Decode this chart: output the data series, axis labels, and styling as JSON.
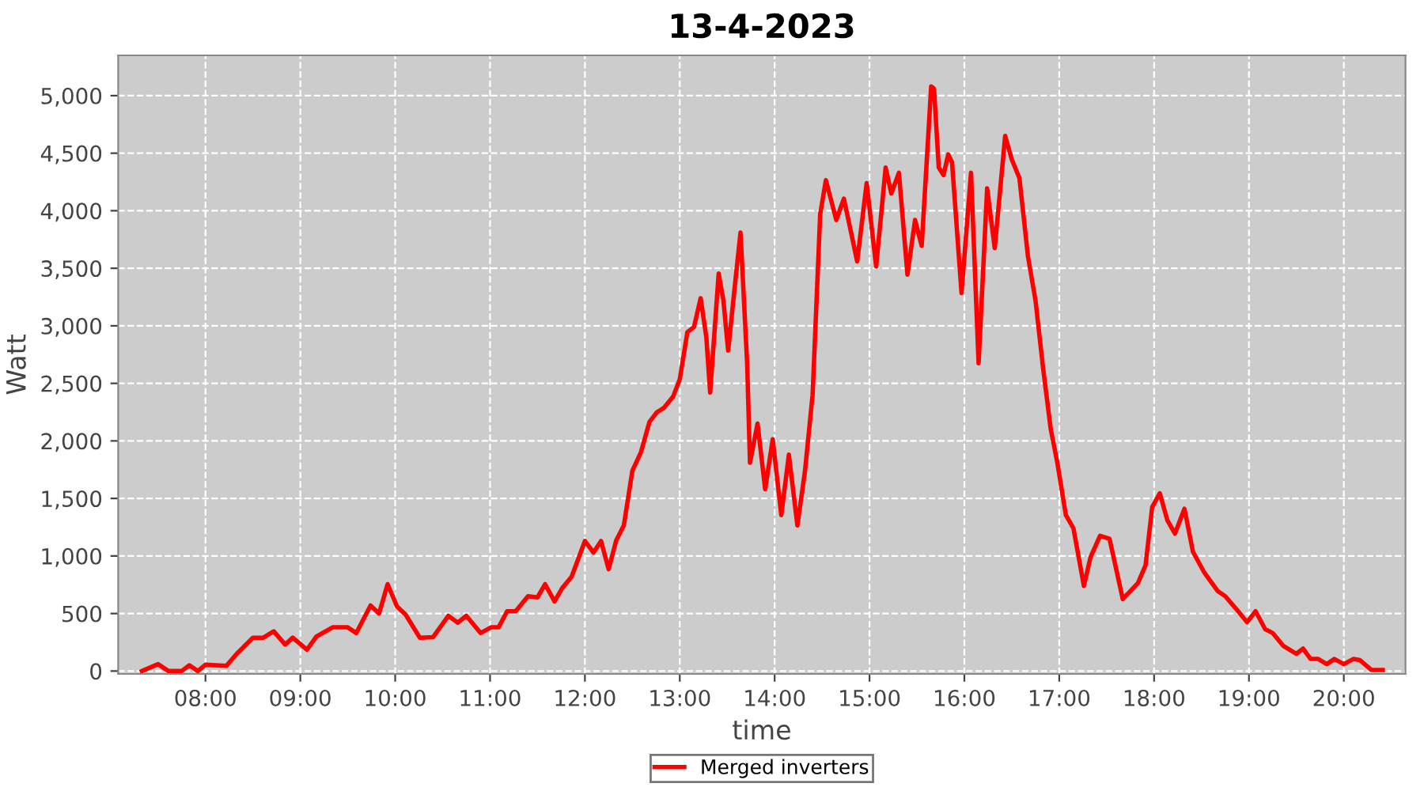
{
  "chart_data": {
    "type": "line",
    "title": "13-4-2023",
    "xlabel": "time",
    "ylabel": "Watt",
    "legend": "bottom",
    "grid": true,
    "line_style": "solid",
    "marker": "none",
    "xlim": [
      7.08,
      20.65
    ],
    "ylim": [
      -25,
      5350
    ],
    "xticks": [
      {
        "value": 8,
        "label": "08:00"
      },
      {
        "value": 9,
        "label": "09:00"
      },
      {
        "value": 10,
        "label": "10:00"
      },
      {
        "value": 11,
        "label": "11:00"
      },
      {
        "value": 12,
        "label": "12:00"
      },
      {
        "value": 13,
        "label": "13:00"
      },
      {
        "value": 14,
        "label": "14:00"
      },
      {
        "value": 15,
        "label": "15:00"
      },
      {
        "value": 16,
        "label": "16:00"
      },
      {
        "value": 17,
        "label": "17:00"
      },
      {
        "value": 18,
        "label": "18:00"
      },
      {
        "value": 19,
        "label": "19:00"
      },
      {
        "value": 20,
        "label": "20:00"
      }
    ],
    "yticks": [
      0,
      {
        "value": 500,
        "label": "500"
      },
      {
        "value": 1000,
        "label": "1,000"
      },
      {
        "value": 1500,
        "label": "1,500"
      },
      {
        "value": 2000,
        "label": "2,000"
      },
      {
        "value": 2500,
        "label": "2,500"
      },
      {
        "value": 3000,
        "label": "3,000"
      },
      {
        "value": 3500,
        "label": "3,500"
      },
      {
        "value": 4000,
        "label": "4,000"
      },
      {
        "value": 4500,
        "label": "4,500"
      },
      {
        "value": 5000,
        "label": "5,000"
      }
    ],
    "series": [
      {
        "name": "Merged inverters",
        "color": "#ff0000",
        "x": [
          7.33,
          7.5,
          7.61,
          7.75,
          7.83,
          7.92,
          8.0,
          8.22,
          8.33,
          8.5,
          8.61,
          8.72,
          8.84,
          8.92,
          9.07,
          9.17,
          9.34,
          9.5,
          9.59,
          9.74,
          9.83,
          9.92,
          10.02,
          10.11,
          10.26,
          10.4,
          10.56,
          10.66,
          10.75,
          10.9,
          11.01,
          11.09,
          11.18,
          11.27,
          11.4,
          11.5,
          11.58,
          11.68,
          11.76,
          11.86,
          12.0,
          12.09,
          12.17,
          12.25,
          12.33,
          12.41,
          12.5,
          12.59,
          12.68,
          12.76,
          12.83,
          12.93,
          13.0,
          13.08,
          13.15,
          13.22,
          13.28,
          13.32,
          13.41,
          13.46,
          13.51,
          13.57,
          13.64,
          13.71,
          13.74,
          13.82,
          13.9,
          13.98,
          14.07,
          14.15,
          14.24,
          14.32,
          14.4,
          14.48,
          14.54,
          14.65,
          14.73,
          14.87,
          14.97,
          15.07,
          15.17,
          15.23,
          15.31,
          15.4,
          15.48,
          15.55,
          15.65,
          15.68,
          15.73,
          15.78,
          15.83,
          15.87,
          15.97,
          16.07,
          16.15,
          16.24,
          16.32,
          16.43,
          16.5,
          16.58,
          16.67,
          16.75,
          16.83,
          16.91,
          16.98,
          17.07,
          17.15,
          17.26,
          17.33,
          17.43,
          17.53,
          17.67,
          17.83,
          17.91,
          17.98,
          18.06,
          18.14,
          18.22,
          18.32,
          18.41,
          18.53,
          18.67,
          18.75,
          18.86,
          18.98,
          19.07,
          19.17,
          19.25,
          19.36,
          19.5,
          19.57,
          19.65,
          19.73,
          19.82,
          19.9,
          20.0,
          20.1,
          20.17,
          20.29,
          20.41
        ],
        "values": [
          0,
          60,
          0,
          0,
          50,
          0,
          55,
          45,
          150,
          290,
          290,
          345,
          230,
          290,
          185,
          300,
          380,
          380,
          330,
          570,
          500,
          755,
          560,
          490,
          290,
          295,
          480,
          420,
          480,
          330,
          380,
          380,
          520,
          520,
          650,
          640,
          755,
          605,
          720,
          820,
          1130,
          1030,
          1130,
          885,
          1135,
          1265,
          1740,
          1900,
          2165,
          2250,
          2285,
          2385,
          2535,
          2945,
          2990,
          3240,
          2900,
          2420,
          3455,
          3220,
          2785,
          3265,
          3810,
          2675,
          1810,
          2150,
          1580,
          2015,
          1355,
          1880,
          1265,
          1740,
          2400,
          3970,
          4265,
          3920,
          4105,
          3560,
          4240,
          3515,
          4375,
          4150,
          4330,
          3445,
          3920,
          3695,
          5080,
          5060,
          4375,
          4310,
          4490,
          4420,
          3285,
          4330,
          2675,
          4195,
          3675,
          4650,
          4445,
          4285,
          3605,
          3220,
          2630,
          2105,
          1810,
          1355,
          1240,
          740,
          990,
          1175,
          1150,
          625,
          765,
          920,
          1425,
          1545,
          1310,
          1195,
          1410,
          1035,
          855,
          695,
          650,
          545,
          425,
          520,
          365,
          330,
          220,
          150,
          195,
          105,
          105,
          60,
          105,
          60,
          105,
          95,
          10,
          10
        ]
      }
    ]
  }
}
